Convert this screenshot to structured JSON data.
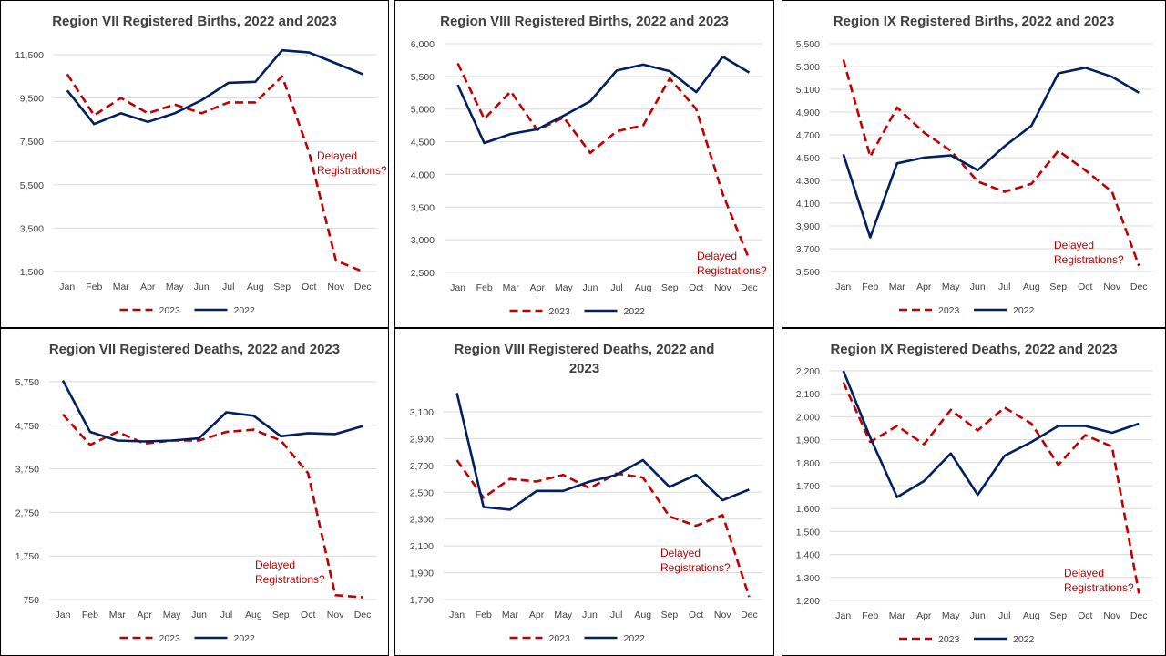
{
  "colors": {
    "s2023": "#c00000",
    "s2022": "#002060"
  },
  "legend": {
    "s2023": "2023",
    "s2022": "2022"
  },
  "chart_data": [
    {
      "type": "line",
      "title_lines": [
        "Region VII  Registered Births, 2022 and 2023"
      ],
      "categories": [
        "Jan",
        "Feb",
        "Mar",
        "Apr",
        "May",
        "Jun",
        "Jul",
        "Aug",
        "Sep",
        "Oct",
        "Nov",
        "Dec"
      ],
      "ylim": [
        1500,
        11500
      ],
      "yticks": [
        "1,500",
        "3,500",
        "5,500",
        "7,500",
        "9,500",
        "11,500"
      ],
      "grid": true,
      "legend_position": "bottom",
      "series": [
        {
          "name": "2023",
          "style": "dashed",
          "values": [
            10600,
            8700,
            9500,
            8800,
            9200,
            8800,
            9300,
            9300,
            10500,
            7000,
            2000,
            1500
          ]
        },
        {
          "name": "2022",
          "style": "solid",
          "values": [
            9850,
            8300,
            8800,
            8400,
            8800,
            9400,
            10200,
            10250,
            11700,
            11600,
            11100,
            10600
          ]
        }
      ],
      "annotation": {
        "lines": [
          "Delayed",
          "Registrations?"
        ]
      }
    },
    {
      "type": "line",
      "title_lines": [
        "Region VIII  Registered Births, 2022 and 2023"
      ],
      "categories": [
        "Jan",
        "Feb",
        "Mar",
        "Apr",
        "May",
        "Jun",
        "Jul",
        "Aug",
        "Sep",
        "Oct",
        "Nov",
        "Dec"
      ],
      "ylim": [
        2500,
        6000
      ],
      "yticks": [
        "2,500",
        "3,000",
        "3,500",
        "4,000",
        "4,500",
        "5,000",
        "5,500",
        "6,000"
      ],
      "grid": true,
      "legend_position": "bottom",
      "series": [
        {
          "name": "2023",
          "style": "dashed",
          "values": [
            5700,
            4850,
            5270,
            4680,
            4870,
            4330,
            4660,
            4750,
            5470,
            5000,
            3700,
            2700
          ]
        },
        {
          "name": "2022",
          "style": "solid",
          "values": [
            5370,
            4480,
            4620,
            4690,
            4900,
            5120,
            5590,
            5680,
            5580,
            5260,
            5800,
            5560
          ]
        }
      ],
      "annotation": {
        "lines": [
          "Delayed",
          "Registrations?"
        ]
      }
    },
    {
      "type": "line",
      "title_lines": [
        "Region IX  Registered Births, 2022 and 2023"
      ],
      "categories": [
        "Jan",
        "Feb",
        "Mar",
        "Apr",
        "May",
        "Jun",
        "Jul",
        "Aug",
        "Sep",
        "Oct",
        "Nov",
        "Dec"
      ],
      "ylim": [
        3500,
        5500
      ],
      "yticks": [
        "3,500",
        "3,700",
        "3,900",
        "4,100",
        "4,300",
        "4,500",
        "4,700",
        "4,900",
        "5,100",
        "5,300",
        "5,500"
      ],
      "grid": true,
      "legend_position": "bottom",
      "series": [
        {
          "name": "2023",
          "style": "dashed",
          "values": [
            5360,
            4510,
            4940,
            4720,
            4560,
            4290,
            4200,
            4270,
            4560,
            4390,
            4200,
            3550
          ]
        },
        {
          "name": "2022",
          "style": "solid",
          "values": [
            4530,
            3800,
            4450,
            4500,
            4520,
            4390,
            4600,
            4780,
            5240,
            5290,
            5210,
            5070
          ]
        }
      ],
      "annotation": {
        "lines": [
          "Delayed",
          "Registrations?"
        ]
      }
    },
    {
      "type": "line",
      "title_lines": [
        "Region VII  Registered Deaths, 2022 and 2023"
      ],
      "categories": [
        "Jan",
        "Feb",
        "Mar",
        "Apr",
        "May",
        "Jun",
        "Jul",
        "Aug",
        "Sep",
        "Oct",
        "Nov",
        "Dec"
      ],
      "ylim": [
        750,
        5750
      ],
      "yticks": [
        "750",
        "1,750",
        "2,750",
        "3,750",
        "4,750",
        "5,750"
      ],
      "grid": true,
      "legend_position": "bottom",
      "series": [
        {
          "name": "2023",
          "style": "dashed",
          "values": [
            5000,
            4300,
            4600,
            4330,
            4400,
            4400,
            4600,
            4650,
            4400,
            3650,
            850,
            800
          ]
        },
        {
          "name": "2022",
          "style": "solid",
          "values": [
            5780,
            4600,
            4400,
            4380,
            4400,
            4450,
            5050,
            4970,
            4500,
            4570,
            4550,
            4730
          ]
        }
      ],
      "annotation": {
        "lines": [
          "Delayed",
          "Registrations?"
        ]
      }
    },
    {
      "type": "line",
      "title_lines": [
        "Region VIII  Registered Deaths, 2022 and",
        "2023"
      ],
      "categories": [
        "Jan",
        "Feb",
        "Mar",
        "Apr",
        "May",
        "Jun",
        "Jul",
        "Aug",
        "Sep",
        "Oct",
        "Nov",
        "Dec"
      ],
      "ylim": [
        1700,
        3100
      ],
      "yticks": [
        "1,700",
        "1,900",
        "2,100",
        "2,300",
        "2,500",
        "2,700",
        "2,900",
        "3,100"
      ],
      "grid": true,
      "legend_position": "bottom",
      "series": [
        {
          "name": "2023",
          "style": "dashed",
          "values": [
            2740,
            2460,
            2600,
            2580,
            2630,
            2530,
            2640,
            2610,
            2320,
            2250,
            2330,
            1720
          ]
        },
        {
          "name": "2022",
          "style": "solid",
          "values": [
            3240,
            2390,
            2370,
            2510,
            2510,
            2580,
            2630,
            2740,
            2540,
            2630,
            2440,
            2520
          ]
        }
      ],
      "annotation": {
        "lines": [
          "Delayed",
          "Registrations?"
        ]
      }
    },
    {
      "type": "line",
      "title_lines": [
        "Region IX  Registered Deaths, 2022 and 2023"
      ],
      "categories": [
        "Jan",
        "Feb",
        "Mar",
        "Apr",
        "May",
        "Jun",
        "Jul",
        "Aug",
        "Sep",
        "Oct",
        "Nov",
        "Dec"
      ],
      "ylim": [
        1200,
        2200
      ],
      "yticks": [
        "1,200",
        "1,300",
        "1,400",
        "1,500",
        "1,600",
        "1,700",
        "1,800",
        "1,900",
        "2,000",
        "2,100",
        "2,200"
      ],
      "grid": true,
      "legend_position": "bottom",
      "series": [
        {
          "name": "2023",
          "style": "dashed",
          "values": [
            2150,
            1890,
            1960,
            1880,
            2030,
            1940,
            2040,
            1970,
            1790,
            1920,
            1870,
            1230
          ]
        },
        {
          "name": "2022",
          "style": "solid",
          "values": [
            2200,
            1910,
            1650,
            1720,
            1840,
            1660,
            1830,
            1890,
            1960,
            1960,
            1930,
            1970
          ]
        }
      ],
      "annotation": {
        "lines": [
          "Delayed",
          "Registrations?"
        ]
      }
    }
  ]
}
